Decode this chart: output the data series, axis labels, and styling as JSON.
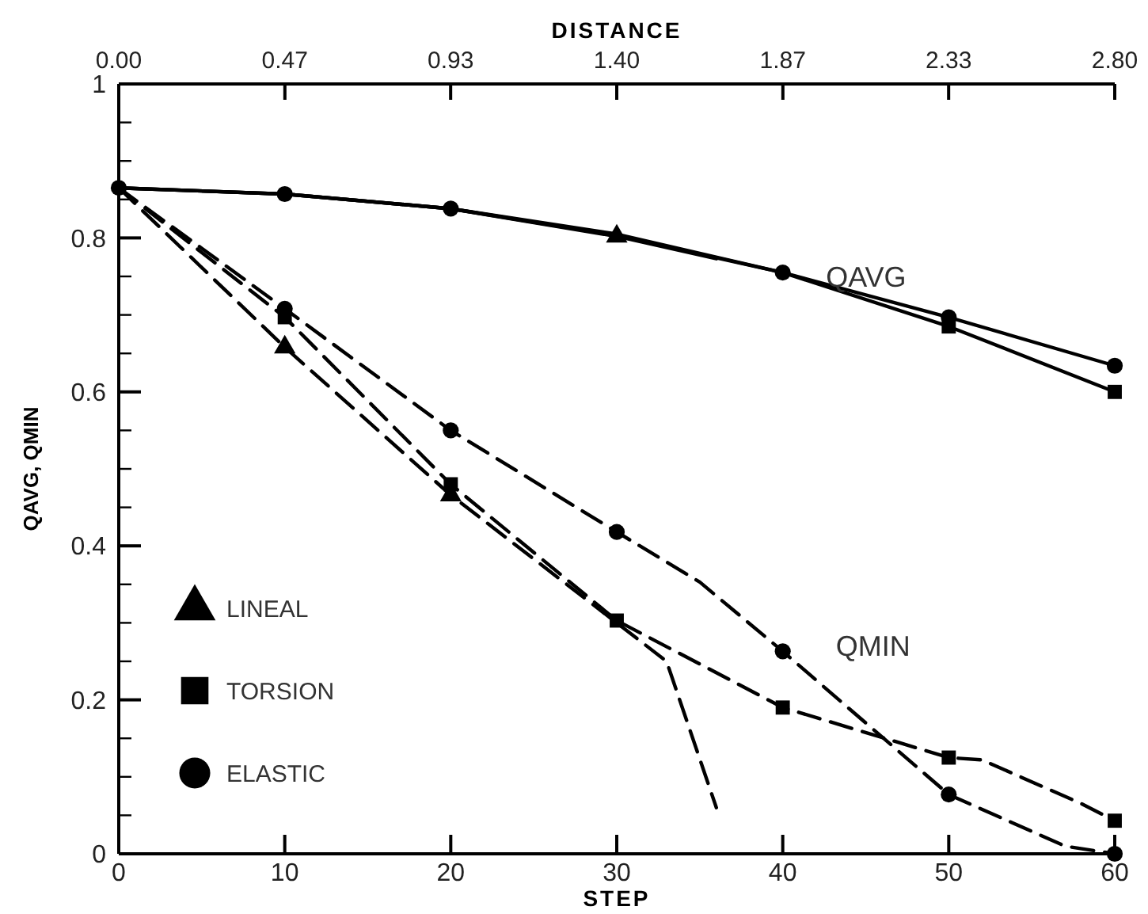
{
  "chart_data": {
    "type": "line",
    "xlabel": "STEP",
    "x2label": "DISTANCE",
    "ylabel": "QAVG, QMIN",
    "xlim": [
      0,
      60
    ],
    "xticks": [
      0,
      10,
      20,
      30,
      40,
      50,
      60
    ],
    "x2lim": [
      0,
      2.8
    ],
    "x2ticks": [
      {
        "value": 0,
        "label": "0.00"
      },
      {
        "value": 0.467,
        "label": "0.47"
      },
      {
        "value": 0.933,
        "label": "0.93"
      },
      {
        "value": 1.4,
        "label": "1.40"
      },
      {
        "value": 1.867,
        "label": "1.87"
      },
      {
        "value": 2.333,
        "label": "2.33"
      },
      {
        "value": 2.8,
        "label": "2.80"
      }
    ],
    "ylim": [
      0,
      1
    ],
    "yticks": [
      0,
      {
        "value": 0.05,
        "label": null
      },
      {
        "value": 0.1,
        "label": null
      },
      {
        "value": 0.15,
        "label": null
      },
      0.2,
      {
        "value": 0.25,
        "label": null
      },
      {
        "value": 0.3,
        "label": null
      },
      {
        "value": 0.35,
        "label": null
      },
      0.4,
      {
        "value": 0.45,
        "label": null
      },
      {
        "value": 0.5,
        "label": null
      },
      {
        "value": 0.55,
        "label": null
      },
      0.6,
      {
        "value": 0.65,
        "label": null
      },
      {
        "value": 0.7,
        "label": null
      },
      {
        "value": 0.75,
        "label": null
      },
      0.8,
      {
        "value": 0.85,
        "label": null
      },
      {
        "value": 0.9,
        "label": null
      },
      {
        "value": 0.95,
        "label": null
      },
      1
    ],
    "grid": false,
    "legend": "bottom left",
    "annotations": [
      "QAVG",
      "QMIN"
    ],
    "series": [
      {
        "color": "#000000",
        "line_style": "solid",
        "marker": "none",
        "x": [
          0,
          10,
          20,
          30,
          36
        ],
        "values": [
          0.865,
          0.857,
          0.838,
          0.802,
          0.773
        ]
      },
      {
        "color": "#000000",
        "line_style": "solid",
        "marker": "none",
        "x": [
          0,
          10,
          20,
          30,
          40,
          50,
          60
        ],
        "values": [
          0.865,
          0.857,
          0.838,
          0.803,
          0.755,
          0.685,
          0.6
        ]
      },
      {
        "color": "#000000",
        "line_style": "solid",
        "marker": "none",
        "x": [
          0,
          10,
          20,
          30,
          40,
          50,
          60
        ],
        "values": [
          0.865,
          0.857,
          0.838,
          0.805,
          0.755,
          0.697,
          0.634
        ]
      },
      {
        "color": "#000000",
        "line_style": "dashed",
        "marker": "none",
        "x": [
          0,
          10,
          20,
          30,
          33,
          36
        ],
        "values": [
          0.865,
          0.658,
          0.466,
          0.3,
          0.25,
          0.06
        ]
      },
      {
        "color": "#000000",
        "line_style": "dashed",
        "marker": "none",
        "x": [
          0,
          10,
          20,
          30,
          40,
          50,
          52,
          58,
          60
        ],
        "values": [
          0.865,
          0.697,
          0.48,
          0.303,
          0.19,
          0.125,
          0.122,
          0.065,
          0.043
        ]
      },
      {
        "color": "#000000",
        "line_style": "dashed",
        "marker": "none",
        "x": [
          0,
          10,
          20,
          30,
          35,
          40,
          50,
          57,
          60
        ],
        "values": [
          0.865,
          0.708,
          0.55,
          0.418,
          0.353,
          0.263,
          0.077,
          0.01,
          0
        ]
      },
      {
        "type": "scatter",
        "name": "LINEAL",
        "color": "#000000",
        "marker": "triangle",
        "x": [
          30,
          10,
          20
        ],
        "values": [
          0.802,
          0.658,
          0.466
        ]
      },
      {
        "type": "scatter",
        "name": "TORSION",
        "color": "#000000",
        "marker": "square",
        "x": [
          50,
          60,
          10,
          20,
          30,
          40,
          50,
          60
        ],
        "values": [
          0.685,
          0.6,
          0.697,
          0.48,
          0.303,
          0.19,
          0.125,
          0.043
        ]
      },
      {
        "type": "scatter",
        "name": "ELASTIC",
        "color": "#000000",
        "marker": "circle",
        "x": [
          0,
          10,
          20,
          40,
          50,
          60,
          10,
          20,
          30,
          40,
          50,
          60
        ],
        "values": [
          0.865,
          0.857,
          0.838,
          0.755,
          0.697,
          0.634,
          0.708,
          0.55,
          0.418,
          0.263,
          0.077,
          0
        ]
      }
    ]
  }
}
